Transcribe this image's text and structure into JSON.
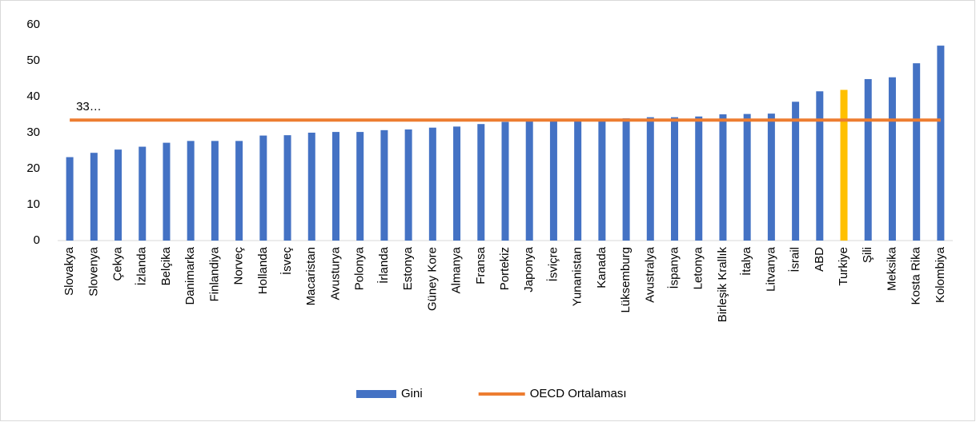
{
  "chart_data": {
    "type": "bar",
    "categories": [
      "Slovakya",
      "Slovenya",
      "Çekya",
      "İzlanda",
      "Belçika",
      "Danimarka",
      "Finlandiya",
      "Norveç",
      "Hollanda",
      "İsveç",
      "Macaristan",
      "Avusturya",
      "Polonya",
      "İrlanda",
      "Estonya",
      "Güney Kore",
      "Almanya",
      "Fransa",
      "Portekiz",
      "Japonya",
      "İsviçre",
      "Yunanistan",
      "Kanada",
      "Lüksemburg",
      "Avustralya",
      "İspanya",
      "Letonya",
      "Birleşik Krallık",
      "İtalya",
      "Litvanya",
      "İsrail",
      "ABD",
      "Turkiye",
      "Şili",
      "Meksika",
      "Kosta Rika",
      "Kolombiya"
    ],
    "series": [
      {
        "name": "Gini",
        "type": "bar",
        "color": "#4472c4",
        "colors": [
          "#4472c4",
          "#4472c4",
          "#4472c4",
          "#4472c4",
          "#4472c4",
          "#4472c4",
          "#4472c4",
          "#4472c4",
          "#4472c4",
          "#4472c4",
          "#4472c4",
          "#4472c4",
          "#4472c4",
          "#4472c4",
          "#4472c4",
          "#4472c4",
          "#4472c4",
          "#4472c4",
          "#4472c4",
          "#4472c4",
          "#4472c4",
          "#4472c4",
          "#4472c4",
          "#4472c4",
          "#4472c4",
          "#4472c4",
          "#4472c4",
          "#4472c4",
          "#4472c4",
          "#4472c4",
          "#4472c4",
          "#4472c4",
          "#ffc000",
          "#4472c4",
          "#4472c4",
          "#4472c4",
          "#4472c4"
        ],
        "values": [
          23.2,
          24.4,
          25.3,
          26.1,
          27.2,
          27.7,
          27.7,
          27.7,
          29.2,
          29.3,
          30.0,
          30.2,
          30.2,
          30.7,
          30.9,
          31.4,
          31.7,
          32.4,
          33.0,
          33.4,
          33.5,
          33.5,
          33.3,
          34.0,
          34.3,
          34.3,
          34.5,
          35.1,
          35.2,
          35.3,
          38.6,
          41.5,
          41.9,
          44.9,
          45.4,
          49.3,
          54.2
        ]
      },
      {
        "name": "OECD Ortalaması",
        "type": "line",
        "color": "#ed7d31",
        "values": [
          33.5,
          33.5,
          33.5,
          33.5,
          33.5,
          33.5,
          33.5,
          33.5,
          33.5,
          33.5,
          33.5,
          33.5,
          33.5,
          33.5,
          33.5,
          33.5,
          33.5,
          33.5,
          33.5,
          33.5,
          33.5,
          33.5,
          33.5,
          33.5,
          33.5,
          33.5,
          33.5,
          33.5,
          33.5,
          33.5,
          33.5,
          33.5,
          33.5,
          33.5,
          33.5,
          33.5,
          33.5
        ],
        "value_labels": [
          "33…",
          null,
          null,
          null,
          null,
          null,
          null,
          null,
          null,
          null,
          null,
          null,
          null,
          null,
          null,
          null,
          null,
          null,
          null,
          null,
          null,
          null,
          null,
          null,
          null,
          null,
          null,
          null,
          null,
          null,
          null,
          null,
          null,
          null,
          null,
          null,
          null
        ]
      }
    ],
    "ylim": [
      0,
      60
    ],
    "yticks": [
      0,
      10,
      20,
      30,
      40,
      50,
      60
    ],
    "grid": false,
    "legend": "bottom"
  }
}
